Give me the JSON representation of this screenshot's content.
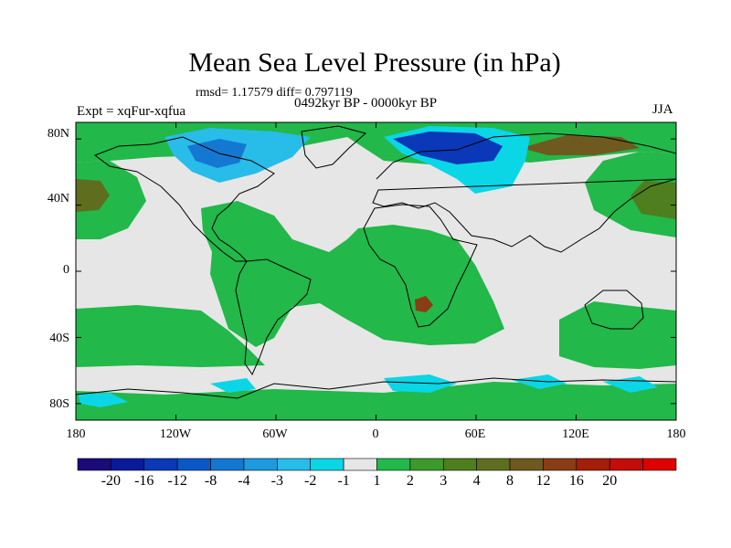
{
  "title": "Mean Sea Level Pressure (in hPa)",
  "stats_line": "rmsd= 1.17579 diff= 0.797119",
  "period": "0492kyr BP - 0000kyr BP",
  "experiment": "Expt = xqFur-xqfua",
  "season": "JJA",
  "map": {
    "projection": "cylindrical-equidistant",
    "lon_range": [
      -180,
      180
    ],
    "lat_range": [
      -90,
      90
    ],
    "lat_ticks": [
      {
        "value": 80,
        "label": "80N"
      },
      {
        "value": 40,
        "label": "40N"
      },
      {
        "value": 0,
        "label": "0"
      },
      {
        "value": -40,
        "label": "40S"
      },
      {
        "value": -80,
        "label": "80S"
      }
    ],
    "lon_ticks": [
      {
        "value": -180,
        "label": "180"
      },
      {
        "value": -120,
        "label": "120W"
      },
      {
        "value": -60,
        "label": "60W"
      },
      {
        "value": 0,
        "label": "0"
      },
      {
        "value": 60,
        "label": "60E"
      },
      {
        "value": 120,
        "label": "120E"
      },
      {
        "value": 180,
        "label": "180"
      }
    ]
  },
  "colorbar": {
    "colors": [
      "#1a0a7a",
      "#0a1a9c",
      "#0a38b8",
      "#0a58c8",
      "#1478d2",
      "#1e9ade",
      "#28bce8",
      "#0ad6e6",
      "#e6e6e6",
      "#22b84a",
      "#3c9a2a",
      "#4e7e1e",
      "#5e6e1e",
      "#6e5a1e",
      "#8a3c14",
      "#a41e0a",
      "#c40c0a",
      "#e00000"
    ],
    "labels": [
      "-20",
      "-16",
      "-12",
      "-8",
      "-4",
      "-3",
      "-2",
      "-1",
      "1",
      "2",
      "3",
      "4",
      "8",
      "12",
      "16",
      "20"
    ]
  }
}
